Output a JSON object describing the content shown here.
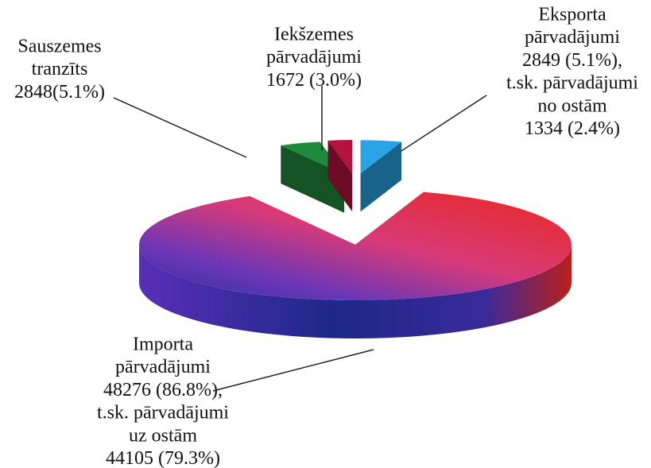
{
  "chart_data": {
    "type": "pie",
    "categories": [
      [
        "Eksporta",
        "pārvadājumi"
      ],
      [
        "Importa",
        "pārvadājumi"
      ],
      [
        "Sauszemes",
        "tranzīts"
      ],
      [
        "Iekšzemes",
        "pārvadājumi"
      ]
    ],
    "values": [
      2849,
      48276,
      2848,
      1672
    ],
    "value_labels": [
      "2849 (5.1%),",
      "48276 (86.8%),",
      "2848(5.1%)",
      "1672 (3.0%)"
    ],
    "annotations": [
      [
        "t.sk. pārvadājumi",
        "no ostām",
        "1334 (2.4%)"
      ],
      [
        "t.sk. pārvadājumi",
        "uz ostām",
        "44105 (79.3%)"
      ]
    ],
    "colors": [
      "#2aa3e6",
      "#e8281e",
      "#1f8a3c",
      "#b5123f"
    ]
  }
}
